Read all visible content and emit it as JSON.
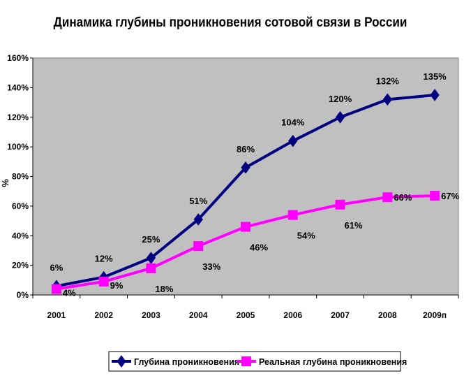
{
  "chart_data": {
    "type": "line",
    "title": "Динамика глубины проникновения сотовой связи в России",
    "xlabel": "",
    "ylabel": "%",
    "categories": [
      "2001",
      "2002",
      "2003",
      "2004",
      "2005",
      "2006",
      "2007",
      "2008",
      "2009п"
    ],
    "ylim": [
      0,
      160
    ],
    "yticks": [
      0,
      20,
      40,
      60,
      80,
      100,
      120,
      140,
      160
    ],
    "ytick_labels": [
      "0%",
      "20%",
      "40%",
      "60%",
      "80%",
      "100%",
      "120%",
      "140%",
      "160%"
    ],
    "grid": false,
    "legend": "bottom",
    "plot_background": "#c0c0c0",
    "series": [
      {
        "name": "Глубина проникновения",
        "color": "#000080",
        "marker": "diamond",
        "values": [
          6,
          12,
          25,
          51,
          86,
          104,
          120,
          132,
          135
        ],
        "labels": [
          "6%",
          "12%",
          "25%",
          "51%",
          "86%",
          "104%",
          "120%",
          "132%",
          "135%"
        ]
      },
      {
        "name": "Реальная глубина проникновения",
        "color": "#ff00ff",
        "marker": "square",
        "values": [
          4,
          9,
          18,
          33,
          46,
          54,
          61,
          66,
          67
        ],
        "labels": [
          "4%",
          "9%",
          "18%",
          "33%",
          "46%",
          "54%",
          "61%",
          "66%",
          "67%"
        ]
      }
    ]
  }
}
